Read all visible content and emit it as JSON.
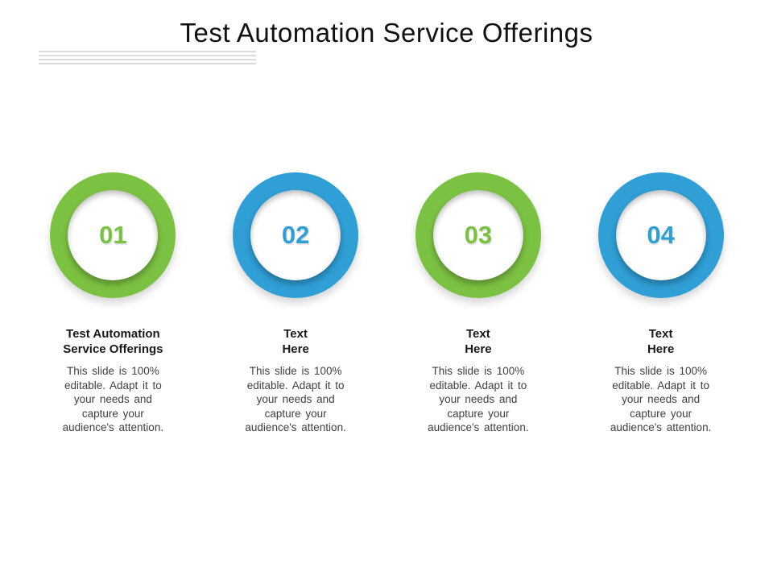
{
  "slide": {
    "title": "Test Automation Service Offerings",
    "divider_color": "#dcdcdc",
    "body_lines": [
      "This slide is 100%",
      "editable. Adapt it to",
      "your needs and",
      "capture your",
      "audience's attention."
    ],
    "items": [
      {
        "number": "01",
        "ring_color": "#7cc242",
        "heading_lines": [
          "Test Automation",
          "Service Offerings"
        ]
      },
      {
        "number": "02",
        "ring_color": "#2f9fd6",
        "heading_lines": [
          "Text",
          "Here"
        ]
      },
      {
        "number": "03",
        "ring_color": "#7cc242",
        "heading_lines": [
          "Text",
          "Here"
        ]
      },
      {
        "number": "04",
        "ring_color": "#2f9fd6",
        "heading_lines": [
          "Text",
          "Here"
        ]
      }
    ]
  }
}
